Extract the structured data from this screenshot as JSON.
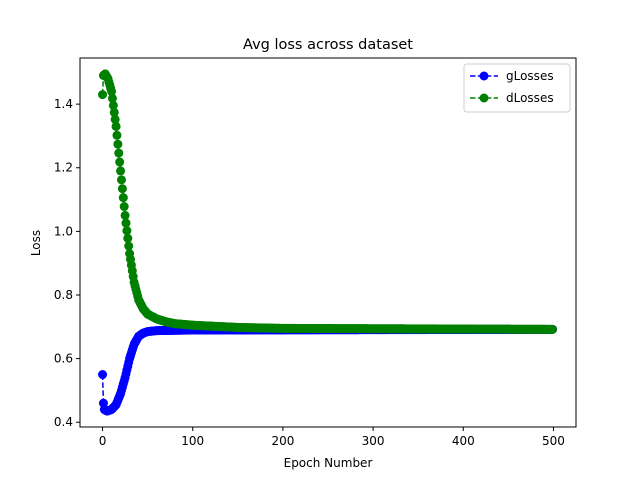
{
  "chart_data": {
    "type": "line",
    "title": "Avg loss across dataset",
    "xlabel": "Epoch Number",
    "ylabel": "Loss",
    "xlim": [
      -25,
      525
    ],
    "ylim": [
      0.385,
      1.545
    ],
    "xticks": [
      0,
      100,
      200,
      300,
      400,
      500
    ],
    "yticks": [
      0.4,
      0.6,
      0.8,
      1.0,
      1.2,
      1.4
    ],
    "ytick_labels": [
      "0.4",
      "0.6",
      "0.8",
      "1.0",
      "1.2",
      "1.4"
    ],
    "grid": false,
    "legend_position": "top-right",
    "marker": "circle",
    "linestyle": "dashed",
    "epochs": 500,
    "series": [
      {
        "name": "gLosses",
        "color": "#0000ff",
        "keypoints": [
          [
            0,
            0.55
          ],
          [
            1,
            0.46
          ],
          [
            2,
            0.44
          ],
          [
            5,
            0.435
          ],
          [
            10,
            0.44
          ],
          [
            15,
            0.455
          ],
          [
            20,
            0.49
          ],
          [
            25,
            0.54
          ],
          [
            30,
            0.6
          ],
          [
            35,
            0.645
          ],
          [
            40,
            0.67
          ],
          [
            45,
            0.68
          ],
          [
            50,
            0.685
          ],
          [
            60,
            0.688
          ],
          [
            80,
            0.689
          ],
          [
            100,
            0.69
          ],
          [
            500,
            0.692
          ]
        ]
      },
      {
        "name": "dLosses",
        "color": "#008000",
        "keypoints": [
          [
            0,
            1.43
          ],
          [
            1,
            1.49
          ],
          [
            3,
            1.495
          ],
          [
            6,
            1.48
          ],
          [
            10,
            1.44
          ],
          [
            15,
            1.33
          ],
          [
            20,
            1.19
          ],
          [
            25,
            1.05
          ],
          [
            30,
            0.93
          ],
          [
            35,
            0.84
          ],
          [
            40,
            0.785
          ],
          [
            45,
            0.757
          ],
          [
            50,
            0.74
          ],
          [
            60,
            0.725
          ],
          [
            70,
            0.716
          ],
          [
            80,
            0.71
          ],
          [
            100,
            0.705
          ],
          [
            150,
            0.698
          ],
          [
            200,
            0.695
          ],
          [
            300,
            0.694
          ],
          [
            500,
            0.692
          ]
        ]
      }
    ]
  }
}
